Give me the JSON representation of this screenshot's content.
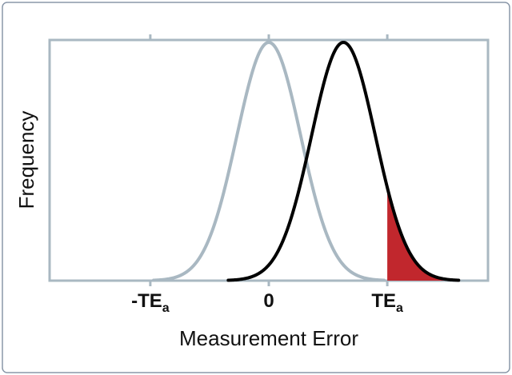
{
  "chart_data": {
    "type": "line",
    "title": "",
    "xlabel": "Measurement Error",
    "ylabel": "Frequency",
    "x_ticks": [
      {
        "value": -1,
        "label": "-TE",
        "sub": "a"
      },
      {
        "value": 0,
        "label": "0",
        "sub": ""
      },
      {
        "value": 1,
        "label": "TE",
        "sub": "a"
      }
    ],
    "xlim": [
      -1.85,
      1.85
    ],
    "ylim": [
      0,
      1.0
    ],
    "grid": false,
    "series": [
      {
        "mean": 0.0,
        "sd": 0.27,
        "peak": 0.99,
        "color": "#a9b8c2"
      },
      {
        "mean": 0.63,
        "sd": 0.27,
        "peak": 0.99,
        "color": "#000000",
        "shade_from": 1.0,
        "shade_color": "#c1272d"
      }
    ],
    "colors": {
      "frame": "#a9b8c2",
      "border": "#8a97a8"
    }
  }
}
